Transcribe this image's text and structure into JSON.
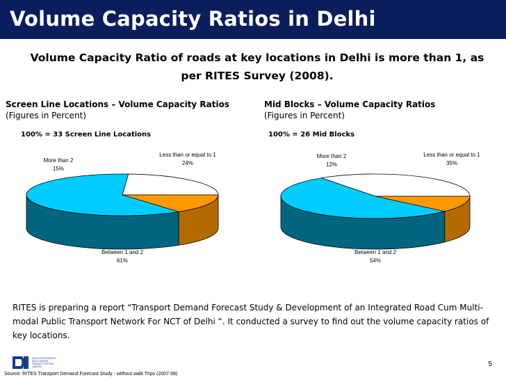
{
  "slide": {
    "title": "Volume Capacity Ratios in Delhi",
    "subtitle": "Volume Capacity Ratio of roads at key locations in Delhi is more than 1, as per RITES Survey (2008).",
    "body": "RITES is preparing a report “Transport Demand Forecast Study & Development  of an Integrated Road Cum  Multi-modal Public Transport Network For NCT of Delhi “. It conducted a survey to find out the volume capacity ratios of key locations.",
    "page_number": "5",
    "source": "Source: RITES Transport Demand Forecast Study - without walk Trips (2007-08)",
    "logo_text": [
      "DELHI INTEGRATED",
      "MULTI-MODAL",
      "TRANSIT SYSTEM",
      "LIMITED"
    ]
  },
  "colors": {
    "title_bg": "#0a1d5c",
    "slice_lte1": "#ffffff",
    "slice_1to2": "#00ccff",
    "slice_gt2": "#ff9900",
    "side_1to2": "#006680",
    "side_lte1": "#808080"
  },
  "chart_data": [
    {
      "type": "pie",
      "title": "Screen Line Locations – Volume Capacity Ratios",
      "subtitle": "(Figures in Percent)",
      "total_label": "100% = 33 Screen Line Locations",
      "slices": [
        {
          "label": "Less than or equal to  1",
          "value": 24,
          "value_label": "24%"
        },
        {
          "label": "Between 1 and 2",
          "value": 61,
          "value_label": "61%"
        },
        {
          "label": "More than 2",
          "value": 15,
          "value_label": "15%"
        }
      ]
    },
    {
      "type": "pie",
      "title": "Mid Blocks – Volume Capacity Ratios",
      "subtitle": "(Figures in Percent)",
      "total_label": "100% = 26 Mid Blocks",
      "slices": [
        {
          "label": "Less than or equal to  1",
          "value": 35,
          "value_label": "35%"
        },
        {
          "label": "Between 1 and 2",
          "value": 54,
          "value_label": "54%"
        },
        {
          "label": "More than 2",
          "value": 12,
          "value_label": "12%"
        }
      ]
    }
  ]
}
